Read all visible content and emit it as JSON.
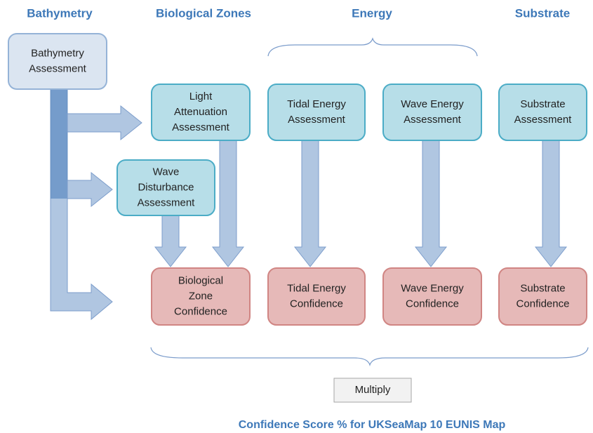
{
  "headers": [
    "Bathymetry",
    "Biological Zones",
    "Energy",
    "Substrate"
  ],
  "nodes": [
    {
      "label": [
        "Bathymetry",
        "Assessment"
      ]
    },
    {
      "label": [
        "Light",
        "Attenuation",
        "Assessment"
      ]
    },
    {
      "label": [
        "Tidal Energy",
        "Assessment"
      ]
    },
    {
      "label": [
        "Wave Energy",
        "Assessment"
      ]
    },
    {
      "label": [
        "Substrate",
        "Assessment"
      ]
    },
    {
      "label": [
        "Wave",
        "Disturbance",
        "Assessment"
      ]
    },
    {
      "label": [
        "Biological",
        "Zone",
        "Confidence"
      ]
    },
    {
      "label": [
        "Tidal Energy",
        "Confidence"
      ]
    },
    {
      "label": [
        "Wave Energy",
        "Confidence"
      ]
    },
    {
      "label": [
        "Substrate",
        "Confidence"
      ]
    }
  ],
  "operation": "Multiply",
  "footer": "Confidence Score % for UKSeaMap 10 EUNIS Map"
}
